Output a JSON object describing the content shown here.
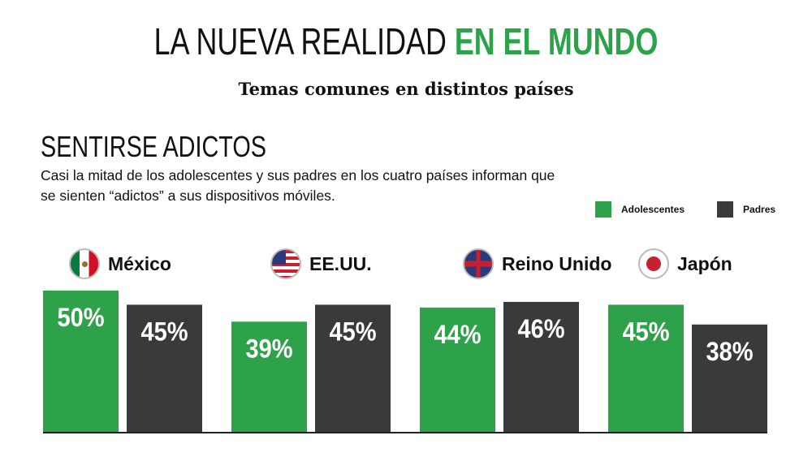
{
  "header": {
    "title_part1": "LA NUEVA REALIDAD ",
    "title_part2": "EN EL MUNDO",
    "subtitle": "Temas comunes en distintos países"
  },
  "section": {
    "title": "SENTIRSE ADICTOS",
    "description": "Casi la mitad de los adolescentes y sus padres en los cuatro países informan que se sienten “adictos” a sus dispositivos móviles."
  },
  "chart_data": {
    "type": "bar",
    "categories": [
      "México",
      "EE.UU.",
      "Reino Unido",
      "Japón"
    ],
    "series": [
      {
        "name": "Adolescentes",
        "values": [
          50,
          39,
          44,
          45
        ],
        "color": "#2ea24a"
      },
      {
        "name": "Padres",
        "values": [
          45,
          45,
          46,
          38
        ],
        "color": "#3a3a3c"
      }
    ],
    "data_labels": [
      [
        "50%",
        "39%",
        "44%",
        "45%"
      ],
      [
        "45%",
        "45%",
        "46%",
        "38%"
      ]
    ],
    "legend": "top-right",
    "grid": false,
    "ylim": [
      0,
      50
    ]
  }
}
